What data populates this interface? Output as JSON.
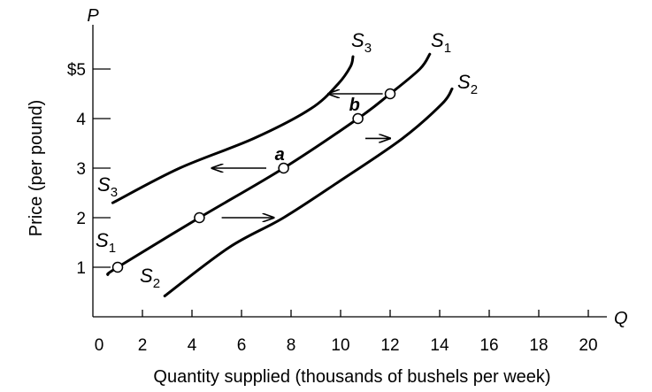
{
  "chart_data": {
    "type": "line",
    "xlabel": "Quantity supplied (thousands of bushels per week)",
    "ylabel": "Price (per pound)",
    "x_axis_letter": "Q",
    "y_axis_letter": "P",
    "xlim": [
      0,
      20
    ],
    "ylim": [
      0,
      5.6
    ],
    "x_ticks": [
      {
        "value": 0,
        "label": "0"
      },
      {
        "value": 2,
        "label": "2"
      },
      {
        "value": 4,
        "label": "4"
      },
      {
        "value": 6,
        "label": "6"
      },
      {
        "value": 8,
        "label": "8"
      },
      {
        "value": 10,
        "label": "10"
      },
      {
        "value": 12,
        "label": "12"
      },
      {
        "value": 14,
        "label": "14"
      },
      {
        "value": 16,
        "label": "16"
      },
      {
        "value": 18,
        "label": "18"
      },
      {
        "value": 20,
        "label": "20"
      }
    ],
    "y_ticks": [
      {
        "value": 1,
        "label": "1"
      },
      {
        "value": 2,
        "label": "2"
      },
      {
        "value": 3,
        "label": "3"
      },
      {
        "value": 4,
        "label": "4"
      },
      {
        "value": 5,
        "label": "$5"
      }
    ],
    "grid": false,
    "series": [
      {
        "name": "S1",
        "label_main": "S",
        "label_sub": "1",
        "x": [
          0.6,
          1.0,
          4.3,
          7.7,
          10.7,
          12.0,
          13.2,
          13.6
        ],
        "y": [
          0.85,
          1.0,
          2.0,
          3.0,
          4.0,
          4.5,
          5.0,
          5.3
        ]
      },
      {
        "name": "S2",
        "label_main": "S",
        "label_sub": "2",
        "x": [
          2.9,
          5.5,
          7.7,
          10.0,
          12.5,
          14.1,
          14.5
        ],
        "y": [
          0.42,
          1.4,
          2.0,
          2.75,
          3.6,
          4.3,
          4.6
        ]
      },
      {
        "name": "S3",
        "label_main": "S",
        "label_sub": "3",
        "x": [
          0.8,
          3.5,
          6.5,
          8.8,
          9.9,
          10.4,
          10.5
        ],
        "y": [
          2.3,
          3.0,
          3.6,
          4.2,
          4.7,
          5.05,
          5.25
        ]
      }
    ],
    "points": [
      {
        "x": 1.0,
        "y": 1.0,
        "label": ""
      },
      {
        "x": 4.3,
        "y": 2.0,
        "label": ""
      },
      {
        "x": 7.7,
        "y": 3.0,
        "label": "a"
      },
      {
        "x": 10.7,
        "y": 4.0,
        "label": "b"
      },
      {
        "x": 12.0,
        "y": 4.5,
        "label": ""
      }
    ],
    "arrows": [
      {
        "from": [
          11.7,
          4.5
        ],
        "to": [
          9.5,
          4.5
        ],
        "direction": "left"
      },
      {
        "from": [
          7.0,
          3.0
        ],
        "to": [
          4.8,
          3.0
        ],
        "direction": "left"
      },
      {
        "from": [
          11.0,
          3.6
        ],
        "to": [
          12.0,
          3.6
        ],
        "direction": "right"
      },
      {
        "from": [
          5.2,
          2.0
        ],
        "to": [
          7.3,
          2.0
        ],
        "direction": "right"
      }
    ]
  }
}
